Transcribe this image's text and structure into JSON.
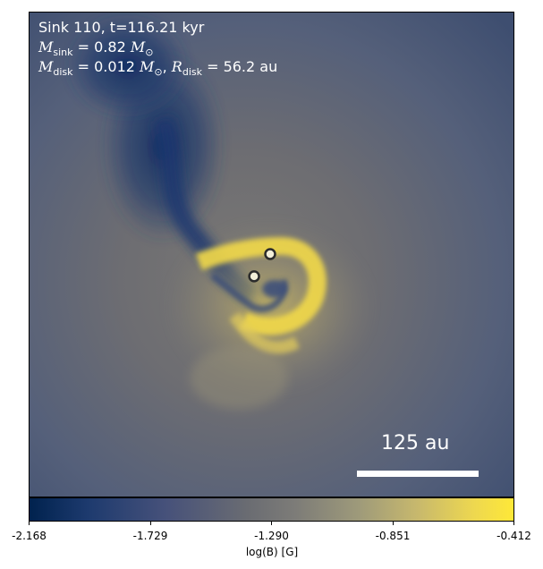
{
  "chart_data": {
    "type": "heatmap",
    "title_lines": {
      "line1": "Sink 110, t=116.21 kyr",
      "msink_sym": "M",
      "msink_sub": "sink",
      "msink_val": "= 0.82",
      "msink_unit": "M",
      "msink_unit_sub": "⊙",
      "mdisk_sym": "M",
      "mdisk_sub": "disk",
      "mdisk_val": "= 0.012",
      "mdisk_unit": "M",
      "mdisk_unit_sub": "⊙",
      "rdisk_sym": "R",
      "rdisk_sub": "disk",
      "rdisk_val": "= 56.2 au"
    },
    "scale_bar_label": "125 au",
    "colorbar": {
      "label": "log(B) [G]",
      "ticks": [
        "-2.168",
        "-1.729",
        "-1.290",
        "-0.851",
        "-0.412"
      ],
      "range": [
        -2.168,
        -0.412
      ],
      "colormap": "cividis"
    },
    "sinks": [
      {
        "id": "sink-a"
      },
      {
        "id": "sink-b"
      }
    ]
  }
}
